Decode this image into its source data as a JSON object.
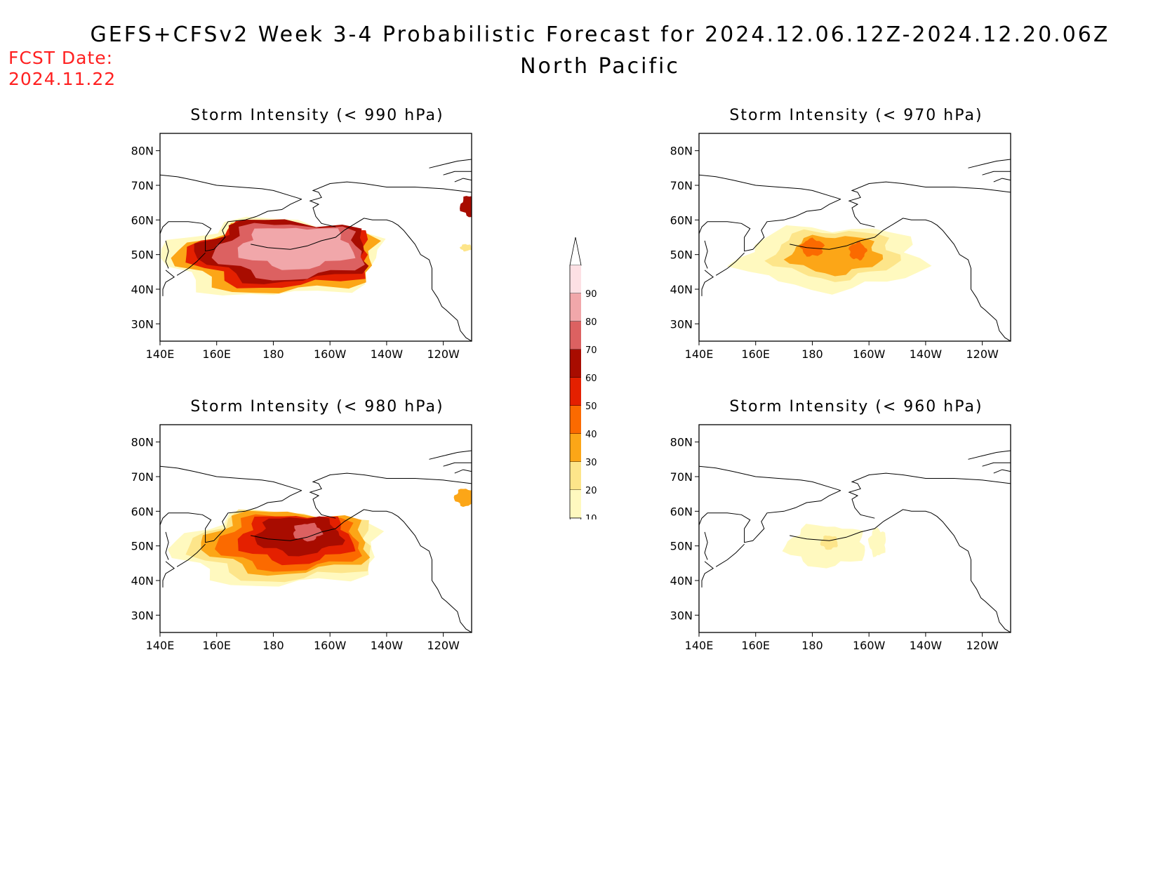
{
  "header": {
    "title": "GEFS+CFSv2 Week 3-4 Probabilistic Forecast for 2024.12.06.12Z-2024.12.20.06Z",
    "subtitle": "North Pacific",
    "fcst_label": "FCST Date:",
    "fcst_date": "2024.11.22"
  },
  "axes": {
    "lat_labels": [
      "80N",
      "70N",
      "60N",
      "50N",
      "40N",
      "30N"
    ],
    "lon_labels": [
      "140E",
      "160E",
      "180",
      "160W",
      "140W",
      "120W"
    ]
  },
  "panels": [
    {
      "id": "p990",
      "title": "Storm Intensity (< 990 hPa)"
    },
    {
      "id": "p970",
      "title": "Storm Intensity (< 970 hPa)"
    },
    {
      "id": "p980",
      "title": "Storm Intensity (< 980 hPa)"
    },
    {
      "id": "p960",
      "title": "Storm Intensity (< 960 hPa)"
    }
  ],
  "colorbar": {
    "levels": [
      "10",
      "20",
      "30",
      "40",
      "50",
      "60",
      "70",
      "80",
      "90"
    ],
    "colors": [
      "#fff9bf",
      "#fde58a",
      "#fca617",
      "#fb6a00",
      "#e42000",
      "#a80c00",
      "#dc6161",
      "#f1a7aa",
      "#fde0e4",
      "#ffffff"
    ]
  },
  "chart_data": [
    {
      "type": "heatmap",
      "title": "Storm Intensity (< 990 hPa)",
      "blobs": [
        {
          "level": 1,
          "lon": 180,
          "lat": 49,
          "rlon": 38,
          "rlat": 11
        },
        {
          "level": 3,
          "lon": 182,
          "lat": 49,
          "rlon": 35,
          "rlat": 10
        },
        {
          "level": 5,
          "lon": 183,
          "lat": 50,
          "rlon": 32,
          "rlat": 9.5
        },
        {
          "level": 6,
          "lon": 184,
          "lat": 51,
          "rlon": 30,
          "rlat": 9
        },
        {
          "level": 7,
          "lon": 186,
          "lat": 51,
          "rlon": 26,
          "rlat": 8
        },
        {
          "level": 8,
          "lon": 188,
          "lat": 52,
          "rlon": 20,
          "rlat": 6
        },
        {
          "level": 6,
          "lon": 250,
          "lat": 64,
          "rlon": 4,
          "rlat": 3
        },
        {
          "level": 2,
          "lon": 248,
          "lat": 52,
          "rlon": 2,
          "rlat": 1
        }
      ]
    },
    {
      "type": "heatmap",
      "title": "Storm Intensity (< 970 hPa)",
      "blobs": [
        {
          "level": 1,
          "lon": 187,
          "lat": 49,
          "rlon": 32,
          "rlat": 9
        },
        {
          "level": 2,
          "lon": 188,
          "lat": 50,
          "rlon": 22,
          "rlat": 7
        },
        {
          "level": 3,
          "lon": 188,
          "lat": 50,
          "rlon": 16,
          "rlat": 5.5
        },
        {
          "level": 4,
          "lon": 180,
          "lat": 52,
          "rlon": 4,
          "rlat": 2.5
        },
        {
          "level": 4,
          "lon": 196,
          "lat": 51,
          "rlon": 3,
          "rlat": 2.5
        }
      ]
    },
    {
      "type": "heatmap",
      "title": "Storm Intensity (< 980 hPa)",
      "blobs": [
        {
          "level": 1,
          "lon": 182,
          "lat": 49,
          "rlon": 36,
          "rlat": 10.5
        },
        {
          "level": 2,
          "lon": 184,
          "lat": 50,
          "rlon": 32,
          "rlat": 10
        },
        {
          "level": 3,
          "lon": 185,
          "lat": 51,
          "rlon": 29,
          "rlat": 9
        },
        {
          "level": 4,
          "lon": 186,
          "lat": 51,
          "rlon": 25,
          "rlat": 8
        },
        {
          "level": 5,
          "lon": 188,
          "lat": 52,
          "rlon": 20,
          "rlat": 7
        },
        {
          "level": 6,
          "lon": 189,
          "lat": 53,
          "rlon": 15,
          "rlat": 5.5
        },
        {
          "level": 7,
          "lon": 192,
          "lat": 54,
          "rlon": 5,
          "rlat": 2.5
        },
        {
          "level": 3,
          "lon": 248,
          "lat": 64,
          "rlon": 4,
          "rlat": 2.5
        }
      ]
    },
    {
      "type": "heatmap",
      "title": "Storm Intensity (< 960 hPa)",
      "blobs": [
        {
          "level": 1,
          "lon": 185,
          "lat": 50,
          "rlon": 14,
          "rlat": 6
        },
        {
          "level": 1,
          "lon": 203,
          "lat": 51,
          "rlon": 3,
          "rlat": 4
        },
        {
          "level": 2,
          "lon": 186,
          "lat": 51,
          "rlon": 3,
          "rlat": 2
        }
      ]
    }
  ]
}
